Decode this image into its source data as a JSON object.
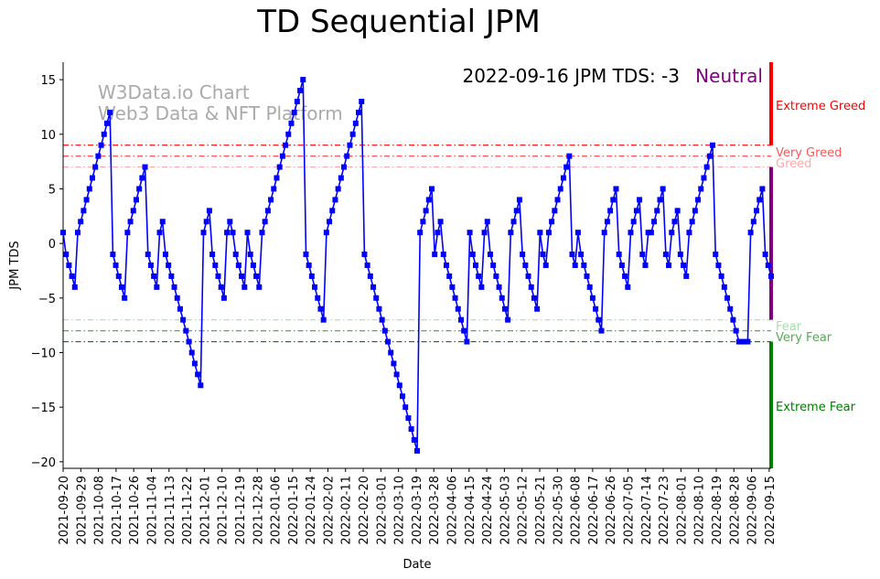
{
  "chart_data": {
    "type": "line",
    "title": "TD Sequential JPM",
    "xlabel": "Date",
    "ylabel": "JPM TDS",
    "ylim": [
      -20.6,
      16.6
    ],
    "yticks": [
      -20,
      -15,
      -10,
      -5,
      0,
      5,
      10,
      15
    ],
    "x_start": "2021-09-20",
    "x_end": "2022-09-16",
    "xticks": [
      "2021-09-20",
      "2021-09-29",
      "2021-10-08",
      "2021-10-17",
      "2021-10-26",
      "2021-11-04",
      "2021-11-13",
      "2021-11-22",
      "2021-12-01",
      "2021-12-10",
      "2021-12-19",
      "2021-12-28",
      "2022-01-06",
      "2022-01-15",
      "2022-01-24",
      "2022-02-02",
      "2022-02-11",
      "2022-02-20",
      "2022-03-01",
      "2022-03-10",
      "2022-03-19",
      "2022-03-28",
      "2022-04-06",
      "2022-04-15",
      "2022-04-24",
      "2022-05-03",
      "2022-05-12",
      "2022-05-21",
      "2022-05-30",
      "2022-06-08",
      "2022-06-17",
      "2022-06-26",
      "2022-07-05",
      "2022-07-14",
      "2022-07-23",
      "2022-08-01",
      "2022-08-10",
      "2022-08-19",
      "2022-08-28",
      "2022-09-06",
      "2022-09-15"
    ],
    "series": [
      {
        "name": "JPM TDS",
        "color": "#0000ff",
        "values": [
          1,
          -1,
          -2,
          -3,
          -4,
          1,
          2,
          3,
          4,
          5,
          6,
          7,
          8,
          9,
          10,
          11,
          12,
          -1,
          -2,
          -3,
          -4,
          -5,
          1,
          2,
          3,
          4,
          5,
          6,
          7,
          -1,
          -2,
          -3,
          -4,
          1,
          2,
          -1,
          -2,
          -3,
          -4,
          -5,
          -6,
          -7,
          -8,
          -9,
          -10,
          -11,
          -12,
          -13,
          1,
          2,
          3,
          -1,
          -2,
          -3,
          -4,
          -5,
          1,
          2,
          1,
          -1,
          -2,
          -3,
          -4,
          1,
          -1,
          -2,
          -3,
          -4,
          1,
          2,
          3,
          4,
          5,
          6,
          7,
          8,
          9,
          10,
          11,
          12,
          13,
          14,
          15,
          -1,
          -2,
          -3,
          -4,
          -5,
          -6,
          -7,
          1,
          2,
          3,
          4,
          5,
          6,
          7,
          8,
          9,
          10,
          11,
          12,
          13,
          -1,
          -2,
          -3,
          -4,
          -5,
          -6,
          -7,
          -8,
          -9,
          -10,
          -11,
          -12,
          -13,
          -14,
          -15,
          -16,
          -17,
          -18,
          -19,
          1,
          2,
          3,
          4,
          5,
          -1,
          1,
          2,
          -1,
          -2,
          -3,
          -4,
          -5,
          -6,
          -7,
          -8,
          -9,
          1,
          -1,
          -2,
          -3,
          -4,
          1,
          2,
          -1,
          -2,
          -3,
          -4,
          -5,
          -6,
          -7,
          1,
          2,
          3,
          4,
          -1,
          -2,
          -3,
          -4,
          -5,
          -6,
          1,
          -1,
          -2,
          1,
          2,
          3,
          4,
          5,
          6,
          7,
          8,
          -1,
          -2,
          1,
          -1,
          -2,
          -3,
          -4,
          -5,
          -6,
          -7,
          -8,
          1,
          2,
          3,
          4,
          5,
          -1,
          -2,
          -3,
          -4,
          1,
          2,
          3,
          4,
          -1,
          -2,
          1,
          1,
          2,
          3,
          4,
          5,
          -1,
          -2,
          1,
          2,
          3,
          -1,
          -2,
          -3,
          1,
          2,
          3,
          4,
          5,
          6,
          7,
          8,
          9,
          -1,
          -2,
          -3,
          -4,
          -5,
          -6,
          -7,
          -8,
          -9,
          -9,
          -9,
          -9,
          1,
          2,
          3,
          4,
          5,
          -1,
          -2,
          -3
        ]
      }
    ],
    "threshold_lines": [
      {
        "label": "Extreme Greed",
        "value": 9,
        "color": "#ff0000"
      },
      {
        "label": "Very Greed",
        "value": 8,
        "color": "#ff5555"
      },
      {
        "label": "Greed",
        "value": 7,
        "color": "#ffaaaa"
      },
      {
        "label": "Fear",
        "value": -7,
        "color": "#aaddaa"
      },
      {
        "label": "Very Fear",
        "value": -8,
        "color": "#55aa55"
      },
      {
        "label": "Extreme Fear",
        "value": -9,
        "color": "#008000"
      }
    ],
    "zones": [
      {
        "label": "Extreme Greed",
        "from": 9,
        "to": 16.6,
        "color": "#ff0000"
      },
      {
        "label": "Neutral",
        "from": -7,
        "to": 7,
        "color": "#800080"
      },
      {
        "label": "Extreme Fear",
        "from": -20.6,
        "to": -9,
        "color": "#008000"
      }
    ],
    "annotation": {
      "text": "2022-09-16 JPM TDS: -3",
      "status": "Neutral",
      "status_color": "#800080"
    },
    "watermark": [
      "W3Data.io Chart",
      "Web3 Data & NFT Platform"
    ]
  }
}
